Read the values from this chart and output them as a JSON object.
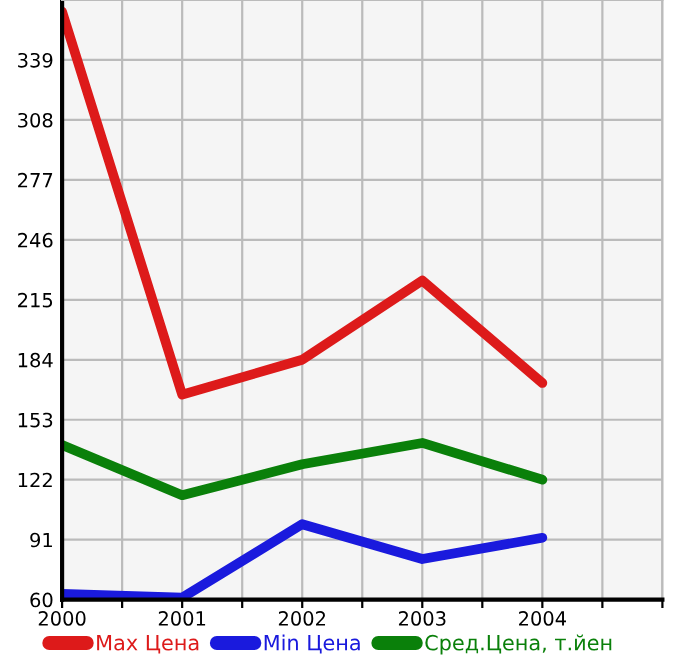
{
  "chart_data": {
    "type": "line",
    "x": [
      2000,
      2001,
      2002,
      2003,
      2004
    ],
    "series": [
      {
        "name": "Max Цена",
        "color": "#dd1a1a",
        "values": [
          364,
          166,
          184,
          225,
          172
        ]
      },
      {
        "name": "Min Цена",
        "color": "#1a1add",
        "values": [
          63,
          61,
          99,
          81,
          92
        ]
      },
      {
        "name": "Сред.Цена, т.йен",
        "color": "#0a800a",
        "values": [
          140,
          114,
          130,
          141,
          122
        ]
      }
    ],
    "xlim": [
      2000,
      2005
    ],
    "xticks": [
      2000,
      {
        "value": 2000.5,
        "label": null
      },
      2001,
      {
        "value": 2001.5,
        "label": null
      },
      2002,
      {
        "value": 2002.5,
        "label": null
      },
      2003,
      {
        "value": 2003.5,
        "label": null
      },
      2004,
      {
        "value": 2004.5,
        "label": null
      },
      {
        "value": 2005,
        "label": null
      }
    ],
    "ylim": [
      60,
      370
    ],
    "yticks": [
      60,
      91,
      122,
      153,
      184,
      215,
      246,
      277,
      308,
      339
    ],
    "grid": true,
    "legend": "bottom",
    "marker": "none",
    "line_style": "solid"
  }
}
